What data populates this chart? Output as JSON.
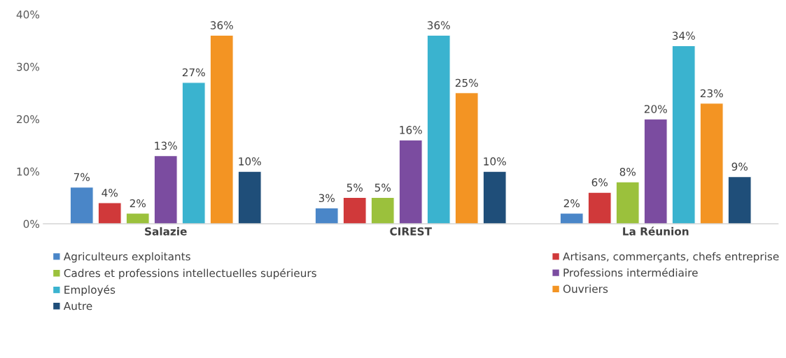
{
  "chart_data": {
    "type": "bar",
    "categories": [
      "Salazie",
      "CIREST",
      "La Réunion"
    ],
    "series": [
      {
        "name": "Agriculteurs exploitants",
        "color": "#4a86c8",
        "values": [
          7,
          3,
          2
        ],
        "value_labels": [
          "7%",
          "3%",
          "2%"
        ]
      },
      {
        "name": "Artisans, commerçants, chefs entreprise",
        "color": "#d0393a",
        "values": [
          4,
          5,
          6
        ],
        "value_labels": [
          "4%",
          "5%",
          "6%"
        ]
      },
      {
        "name": "Cadres et professions intellectuelles supérieurs",
        "color": "#9bc13c",
        "values": [
          2,
          5,
          8
        ],
        "value_labels": [
          "2%",
          "5%",
          "8%"
        ]
      },
      {
        "name": "Professions intermédiaire",
        "color": "#7b4ca0",
        "values": [
          13,
          16,
          20
        ],
        "value_labels": [
          "13%",
          "16%",
          "20%"
        ]
      },
      {
        "name": "Employés",
        "color": "#3ab3cf",
        "values": [
          27,
          36,
          34
        ],
        "value_labels": [
          "27%",
          "36%",
          "34%"
        ]
      },
      {
        "name": "Ouvriers",
        "color": "#f39423",
        "values": [
          36,
          25,
          23
        ],
        "value_labels": [
          "36%",
          "25%",
          "23%"
        ]
      },
      {
        "name": "Autre",
        "color": "#1f4e79",
        "values": [
          10,
          10,
          9
        ],
        "value_labels": [
          "10%",
          "10%",
          "9%"
        ]
      }
    ],
    "ylim": [
      0,
      40
    ],
    "yticks": [
      {
        "value": 0,
        "label": "0%"
      },
      {
        "value": 10,
        "label": "10%"
      },
      {
        "value": 20,
        "label": "20%"
      },
      {
        "value": 30,
        "label": "30%"
      },
      {
        "value": 40,
        "label": "40%"
      }
    ],
    "grid": false,
    "legend": "bottom"
  }
}
